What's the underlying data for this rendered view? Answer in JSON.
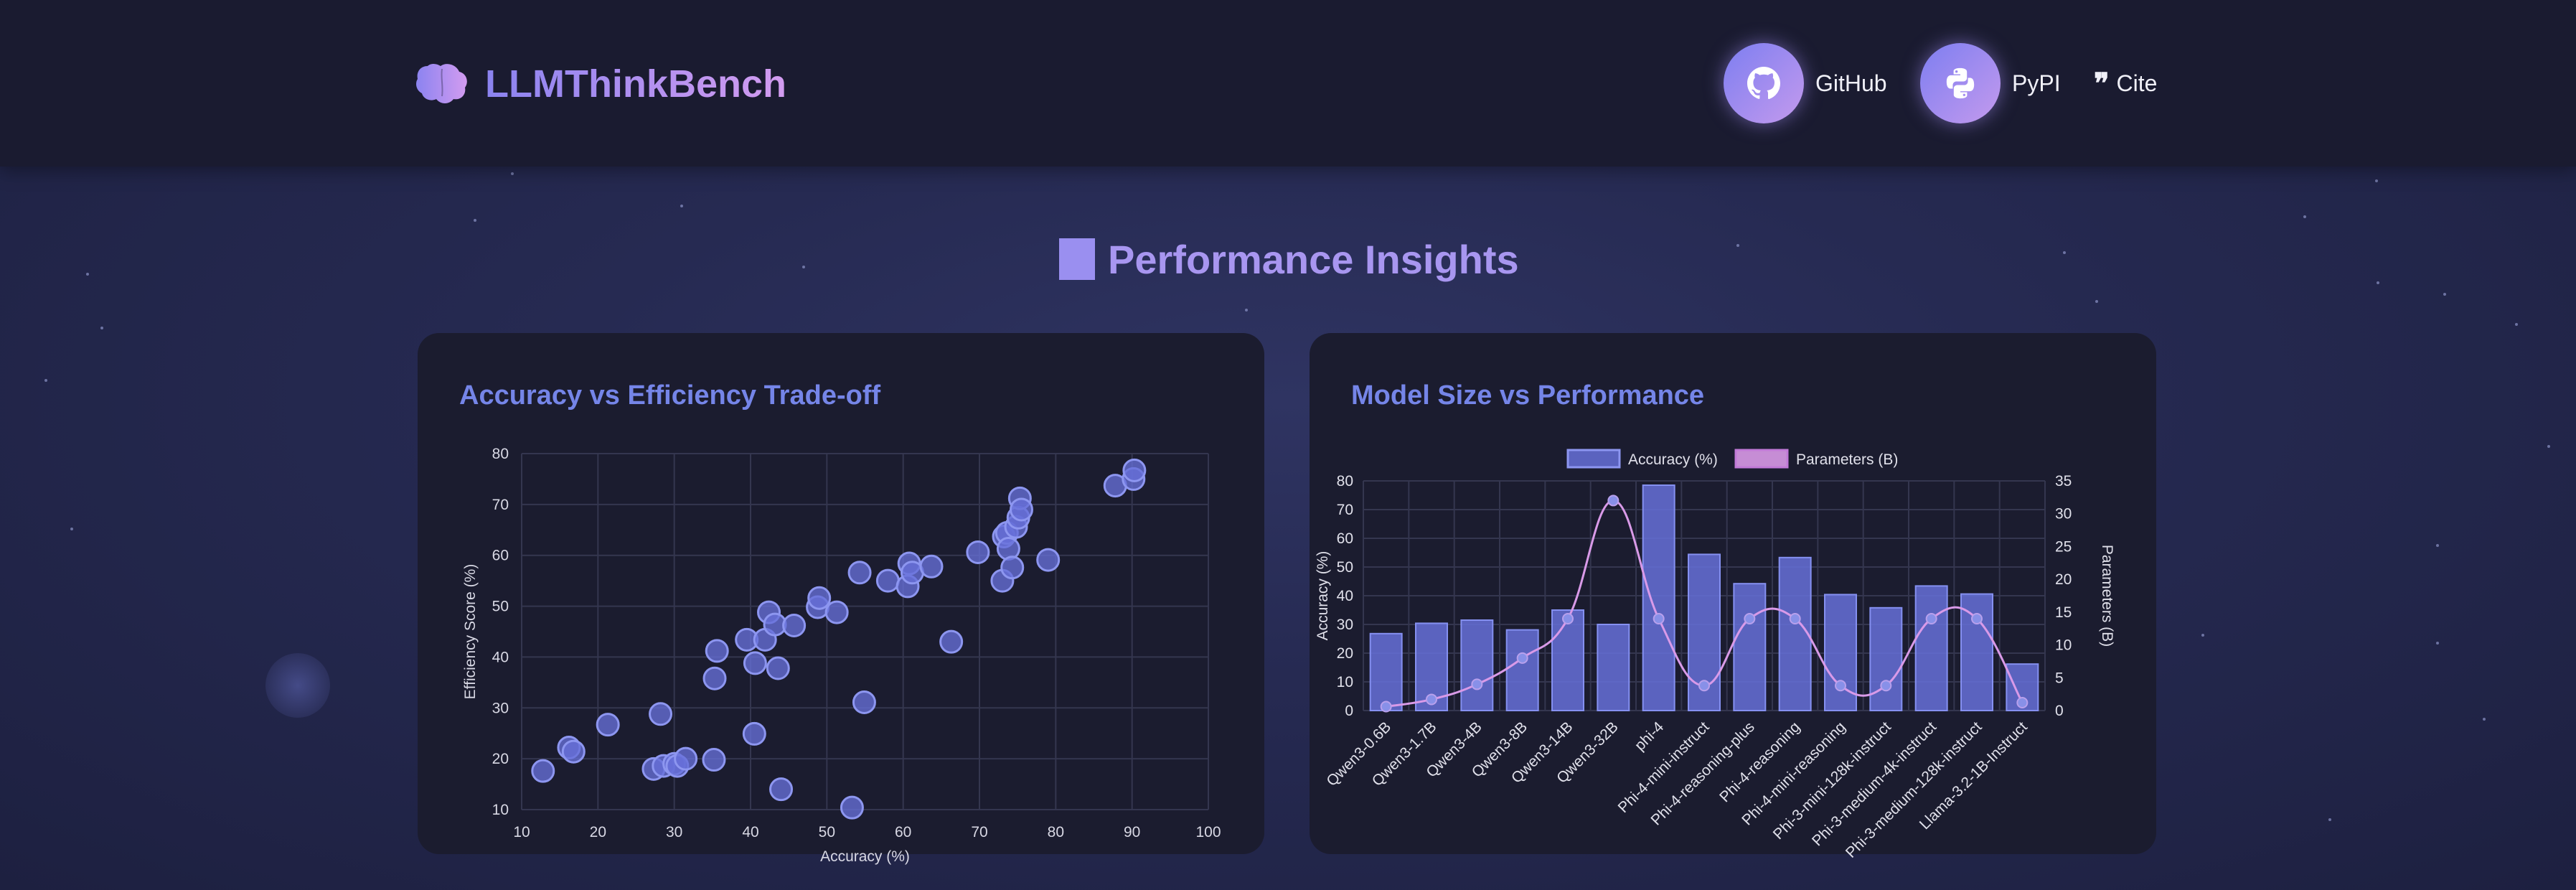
{
  "header": {
    "brand_title": "LLMThinkBench",
    "nav": [
      {
        "label": "GitHub",
        "icon": "github-icon"
      },
      {
        "label": "PyPI",
        "icon": "python-icon"
      },
      {
        "label": "Cite",
        "icon": "quote-icon"
      }
    ]
  },
  "section": {
    "title": "Performance Insights"
  },
  "colors": {
    "accent": "#7585e8",
    "bar": "#6670d8",
    "param_line": "#d99ae8",
    "background": "#262a52",
    "card": "#1b1c2f"
  },
  "chart_data": [
    {
      "type": "scatter",
      "title": "Accuracy vs Efficiency Trade-off",
      "xlabel": "Accuracy (%)",
      "ylabel": "Efficiency Score (%)",
      "xlim": [
        10,
        100
      ],
      "ylim": [
        10,
        80
      ],
      "xticks": [
        10,
        20,
        30,
        40,
        50,
        60,
        70,
        80,
        90,
        100
      ],
      "yticks": [
        10,
        20,
        30,
        40,
        50,
        60,
        70,
        80
      ],
      "grid": true,
      "points": [
        [
          12.8,
          17.6
        ],
        [
          16.2,
          22.2
        ],
        [
          16.8,
          21.4
        ],
        [
          21.3,
          26.7
        ],
        [
          27.3,
          18.0
        ],
        [
          28.2,
          28.8
        ],
        [
          28.6,
          18.6
        ],
        [
          30.0,
          19.0
        ],
        [
          30.4,
          18.6
        ],
        [
          31.5,
          20.0
        ],
        [
          35.2,
          19.8
        ],
        [
          35.3,
          35.8
        ],
        [
          35.6,
          41.2
        ],
        [
          39.5,
          43.4
        ],
        [
          40.5,
          24.9
        ],
        [
          40.6,
          38.8
        ],
        [
          41.9,
          43.4
        ],
        [
          42.4,
          48.8
        ],
        [
          43.2,
          46.4
        ],
        [
          43.6,
          37.8
        ],
        [
          44.0,
          14.0
        ],
        [
          45.7,
          46.2
        ],
        [
          48.8,
          49.8
        ],
        [
          49.0,
          51.6
        ],
        [
          51.3,
          48.8
        ],
        [
          53.3,
          10.4
        ],
        [
          54.3,
          56.6
        ],
        [
          54.9,
          31.1
        ],
        [
          58.0,
          55.0
        ],
        [
          60.6,
          53.9
        ],
        [
          60.8,
          58.4
        ],
        [
          61.2,
          56.6
        ],
        [
          63.7,
          57.8
        ],
        [
          66.3,
          43.0
        ],
        [
          69.8,
          60.6
        ],
        [
          73.0,
          55.0
        ],
        [
          73.2,
          63.7
        ],
        [
          73.6,
          64.4
        ],
        [
          73.8,
          61.3
        ],
        [
          74.3,
          57.6
        ],
        [
          74.8,
          65.6
        ],
        [
          75.1,
          67.4
        ],
        [
          75.3,
          71.2
        ],
        [
          75.5,
          69.0
        ],
        [
          79.0,
          59.1
        ],
        [
          87.8,
          73.7
        ],
        [
          90.2,
          75.0
        ],
        [
          90.3,
          76.7
        ]
      ]
    },
    {
      "type": "bar",
      "title": "Model Size vs Performance",
      "categories": [
        "Qwen3-0.6B",
        "Qwen3-1.7B",
        "Qwen3-4B",
        "Qwen3-8B",
        "Qwen3-14B",
        "Qwen3-32B",
        "phi-4",
        "Phi-4-mini-instruct",
        "Phi-4-reasoning-plus",
        "Phi-4-reasoning",
        "Phi-4-mini-reasoning",
        "Phi-3-mini-128k-instruct",
        "Phi-3-medium-4k-instruct",
        "Phi-3-medium-128k-instruct",
        "Llama-3.2-1B-Instruct"
      ],
      "series": [
        {
          "name": "Accuracy (%)",
          "axis": "left",
          "type": "bar",
          "values": [
            26.8,
            30.4,
            31.5,
            28.1,
            35.0,
            30.0,
            78.5,
            54.4,
            44.2,
            53.3,
            40.4,
            35.8,
            43.4,
            40.6,
            16.2
          ]
        },
        {
          "name": "Parameters (B)",
          "axis": "right",
          "type": "line",
          "values": [
            0.6,
            1.7,
            4,
            8,
            14,
            32,
            14,
            3.8,
            14,
            14,
            3.8,
            3.8,
            14,
            14,
            1.2
          ]
        }
      ],
      "ylabel": "Accuracy (%)",
      "y2label": "Parameters (B)",
      "ylim": [
        0,
        80
      ],
      "y2lim": [
        0,
        35
      ],
      "yticks": [
        0,
        10,
        20,
        30,
        40,
        50,
        60,
        70,
        80
      ],
      "y2ticks": [
        0,
        5,
        10,
        15,
        20,
        25,
        30,
        35
      ],
      "legend": "top-center",
      "grid": true
    }
  ]
}
